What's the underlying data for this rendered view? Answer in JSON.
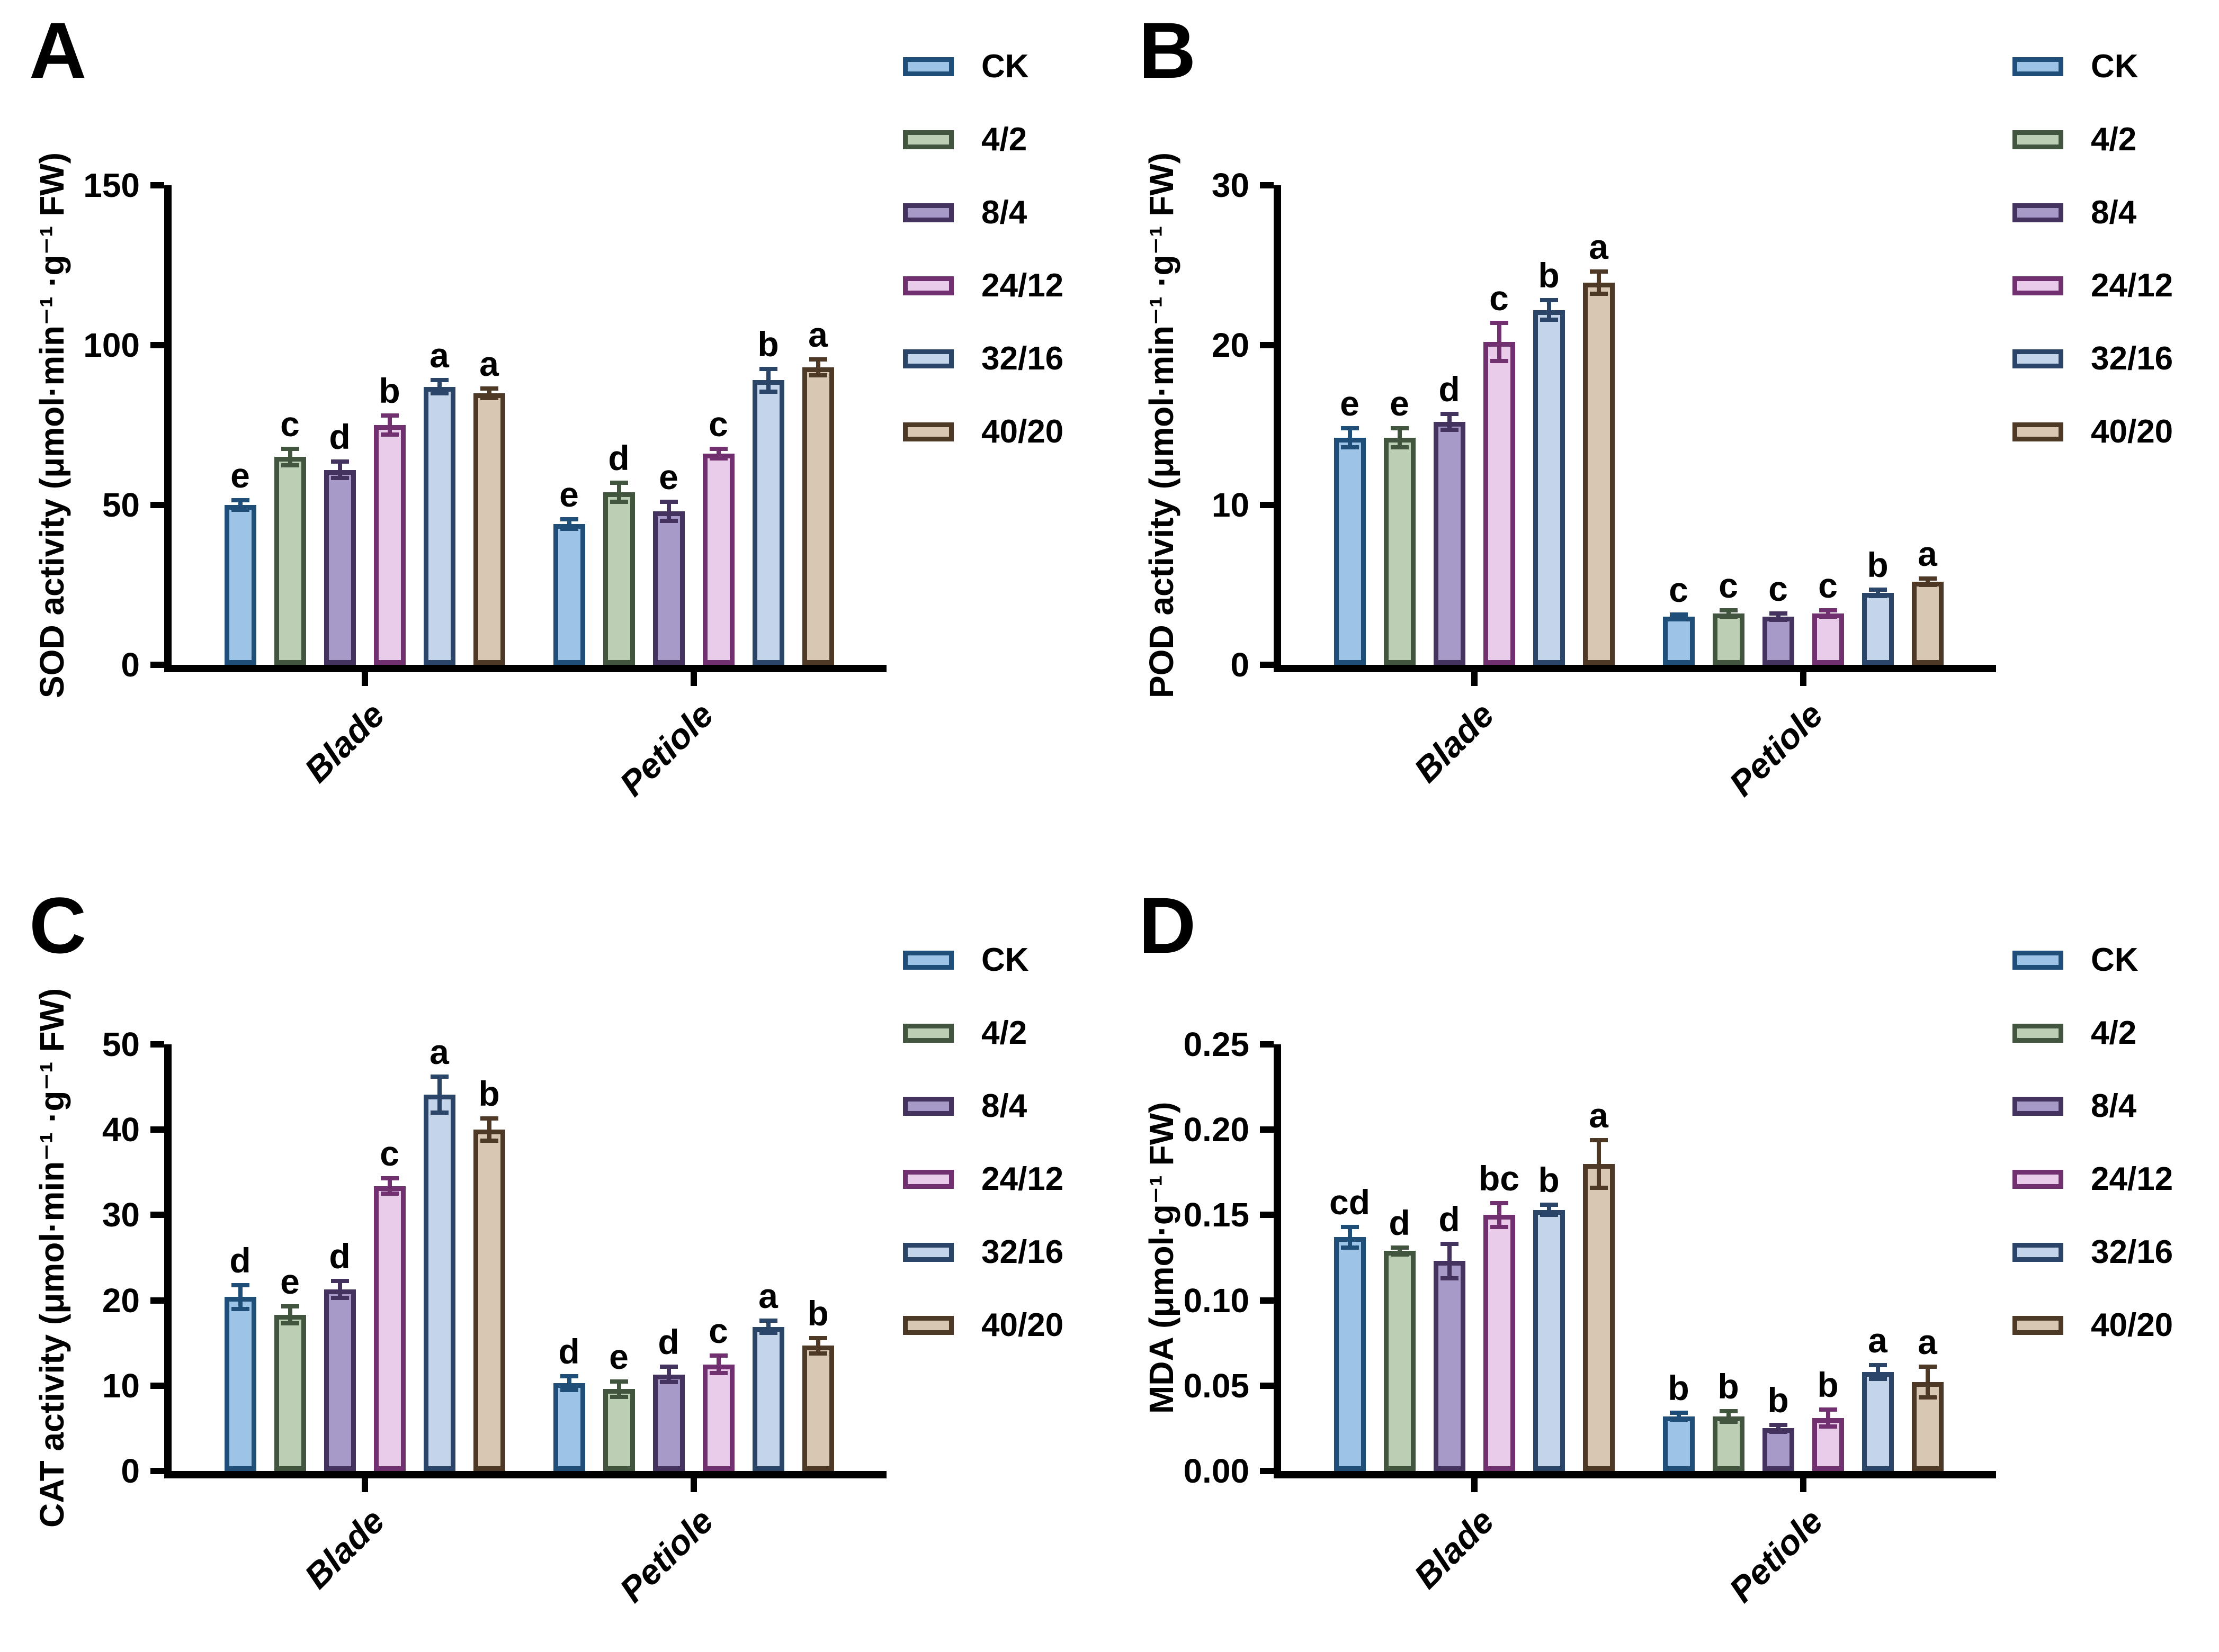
{
  "series": [
    {
      "label": "CK",
      "fill": "#9DC3E6",
      "border": "#1F4E79"
    },
    {
      "label": "4/2",
      "fill": "#BCCEB4",
      "border": "#42553E"
    },
    {
      "label": "8/4",
      "fill": "#A79AC8",
      "border": "#44325F"
    },
    {
      "label": "24/12",
      "fill": "#E8CCEA",
      "border": "#71306F"
    },
    {
      "label": "32/16",
      "fill": "#C4D4E9",
      "border": "#2B4569"
    },
    {
      "label": "40/20",
      "fill": "#D8C8B1",
      "border": "#4D3926"
    }
  ],
  "categories": [
    "Blade",
    "Petiole"
  ],
  "chart_data": [
    {
      "panel_letter": "A",
      "type": "bar",
      "ylabel": "SOD activity (μmol·min⁻¹ ·g⁻¹ FW)",
      "ylim": [
        0,
        150
      ],
      "yticks": [
        0,
        50,
        100,
        150
      ],
      "ytick_labels": [
        "0",
        "50",
        "100",
        "150"
      ],
      "series_order": [
        "CK",
        "4/2",
        "8/4",
        "24/12",
        "32/16",
        "40/20"
      ],
      "legend_position": "right-top",
      "grid": false,
      "groups": [
        {
          "category": "Blade",
          "values": [
            50,
            65,
            61,
            75,
            87,
            85
          ],
          "errors": [
            1.5,
            2.5,
            2.5,
            3,
            2,
            1.5
          ],
          "sig_letters": [
            "e",
            "c",
            "d",
            "b",
            "a",
            "a"
          ]
        },
        {
          "category": "Petiole",
          "values": [
            44,
            54,
            48,
            66,
            89,
            93
          ],
          "errors": [
            1.5,
            3,
            3,
            1.5,
            3.5,
            2.5
          ],
          "sig_letters": [
            "e",
            "d",
            "e",
            "c",
            "b",
            "a"
          ]
        }
      ]
    },
    {
      "panel_letter": "B",
      "type": "bar",
      "ylabel": "POD activity (μmol·min⁻¹ ·g⁻¹ FW)",
      "ylim": [
        0,
        30
      ],
      "yticks": [
        0,
        10,
        20,
        30
      ],
      "ytick_labels": [
        "0",
        "10",
        "20",
        "30"
      ],
      "series_order": [
        "CK",
        "4/2",
        "8/4",
        "24/12",
        "32/16",
        "40/20"
      ],
      "legend_position": "right-top",
      "grid": false,
      "groups": [
        {
          "category": "Blade",
          "values": [
            14.2,
            14.2,
            15.2,
            20.2,
            22.2,
            23.9
          ],
          "errors": [
            0.6,
            0.6,
            0.5,
            1.2,
            0.6,
            0.7
          ],
          "sig_letters": [
            "e",
            "e",
            "d",
            "c",
            "b",
            "a"
          ]
        },
        {
          "category": "Petiole",
          "values": [
            3.0,
            3.2,
            3.0,
            3.2,
            4.5,
            5.2
          ],
          "errors": [
            0.15,
            0.2,
            0.2,
            0.2,
            0.2,
            0.2
          ],
          "sig_letters": [
            "c",
            "c",
            "c",
            "c",
            "b",
            "a"
          ]
        }
      ]
    },
    {
      "panel_letter": "C",
      "type": "bar",
      "ylabel": "CAT activity (μmol·min⁻¹ ·g⁻¹ FW)",
      "ylim": [
        0,
        50
      ],
      "yticks": [
        0,
        10,
        20,
        30,
        40,
        50
      ],
      "ytick_labels": [
        "0",
        "10",
        "20",
        "30",
        "40",
        "50"
      ],
      "series_order": [
        "CK",
        "4/2",
        "8/4",
        "24/12",
        "32/16",
        "40/20"
      ],
      "legend_position": "right-top",
      "grid": false,
      "groups": [
        {
          "category": "Blade",
          "values": [
            20.4,
            18.3,
            21.3,
            33.4,
            44.1,
            40.0
          ],
          "errors": [
            1.4,
            1.0,
            1.0,
            0.9,
            2.1,
            1.3
          ],
          "sig_letters": [
            "d",
            "e",
            "d",
            "c",
            "a",
            "b"
          ]
        },
        {
          "category": "Petiole",
          "values": [
            10.3,
            9.6,
            11.3,
            12.5,
            16.9,
            14.7
          ],
          "errors": [
            0.8,
            0.9,
            0.9,
            1.0,
            0.7,
            0.9
          ],
          "sig_letters": [
            "d",
            "e",
            "d",
            "c",
            "a",
            "b"
          ]
        }
      ]
    },
    {
      "panel_letter": "D",
      "type": "bar",
      "ylabel": "MDA (μmol·g⁻¹ FW)",
      "ylim": [
        0,
        0.25
      ],
      "yticks": [
        0,
        0.05,
        0.1,
        0.15,
        0.2,
        0.25
      ],
      "ytick_labels": [
        "0.00",
        "0.05",
        "0.10",
        "0.15",
        "0.20",
        "0.25"
      ],
      "series_order": [
        "CK",
        "4/2",
        "8/4",
        "24/12",
        "32/16",
        "40/20"
      ],
      "legend_position": "right-top",
      "grid": false,
      "groups": [
        {
          "category": "Blade",
          "values": [
            0.137,
            0.129,
            0.123,
            0.15,
            0.153,
            0.18
          ],
          "errors": [
            0.006,
            0.002,
            0.01,
            0.007,
            0.003,
            0.014
          ],
          "sig_letters": [
            "cd",
            "d",
            "d",
            "bc",
            "b",
            "a"
          ]
        },
        {
          "category": "Petiole",
          "values": [
            0.032,
            0.032,
            0.025,
            0.031,
            0.058,
            0.052
          ],
          "errors": [
            0.002,
            0.003,
            0.002,
            0.005,
            0.004,
            0.009
          ],
          "sig_letters": [
            "b",
            "b",
            "b",
            "b",
            "a",
            "a"
          ]
        }
      ]
    }
  ]
}
